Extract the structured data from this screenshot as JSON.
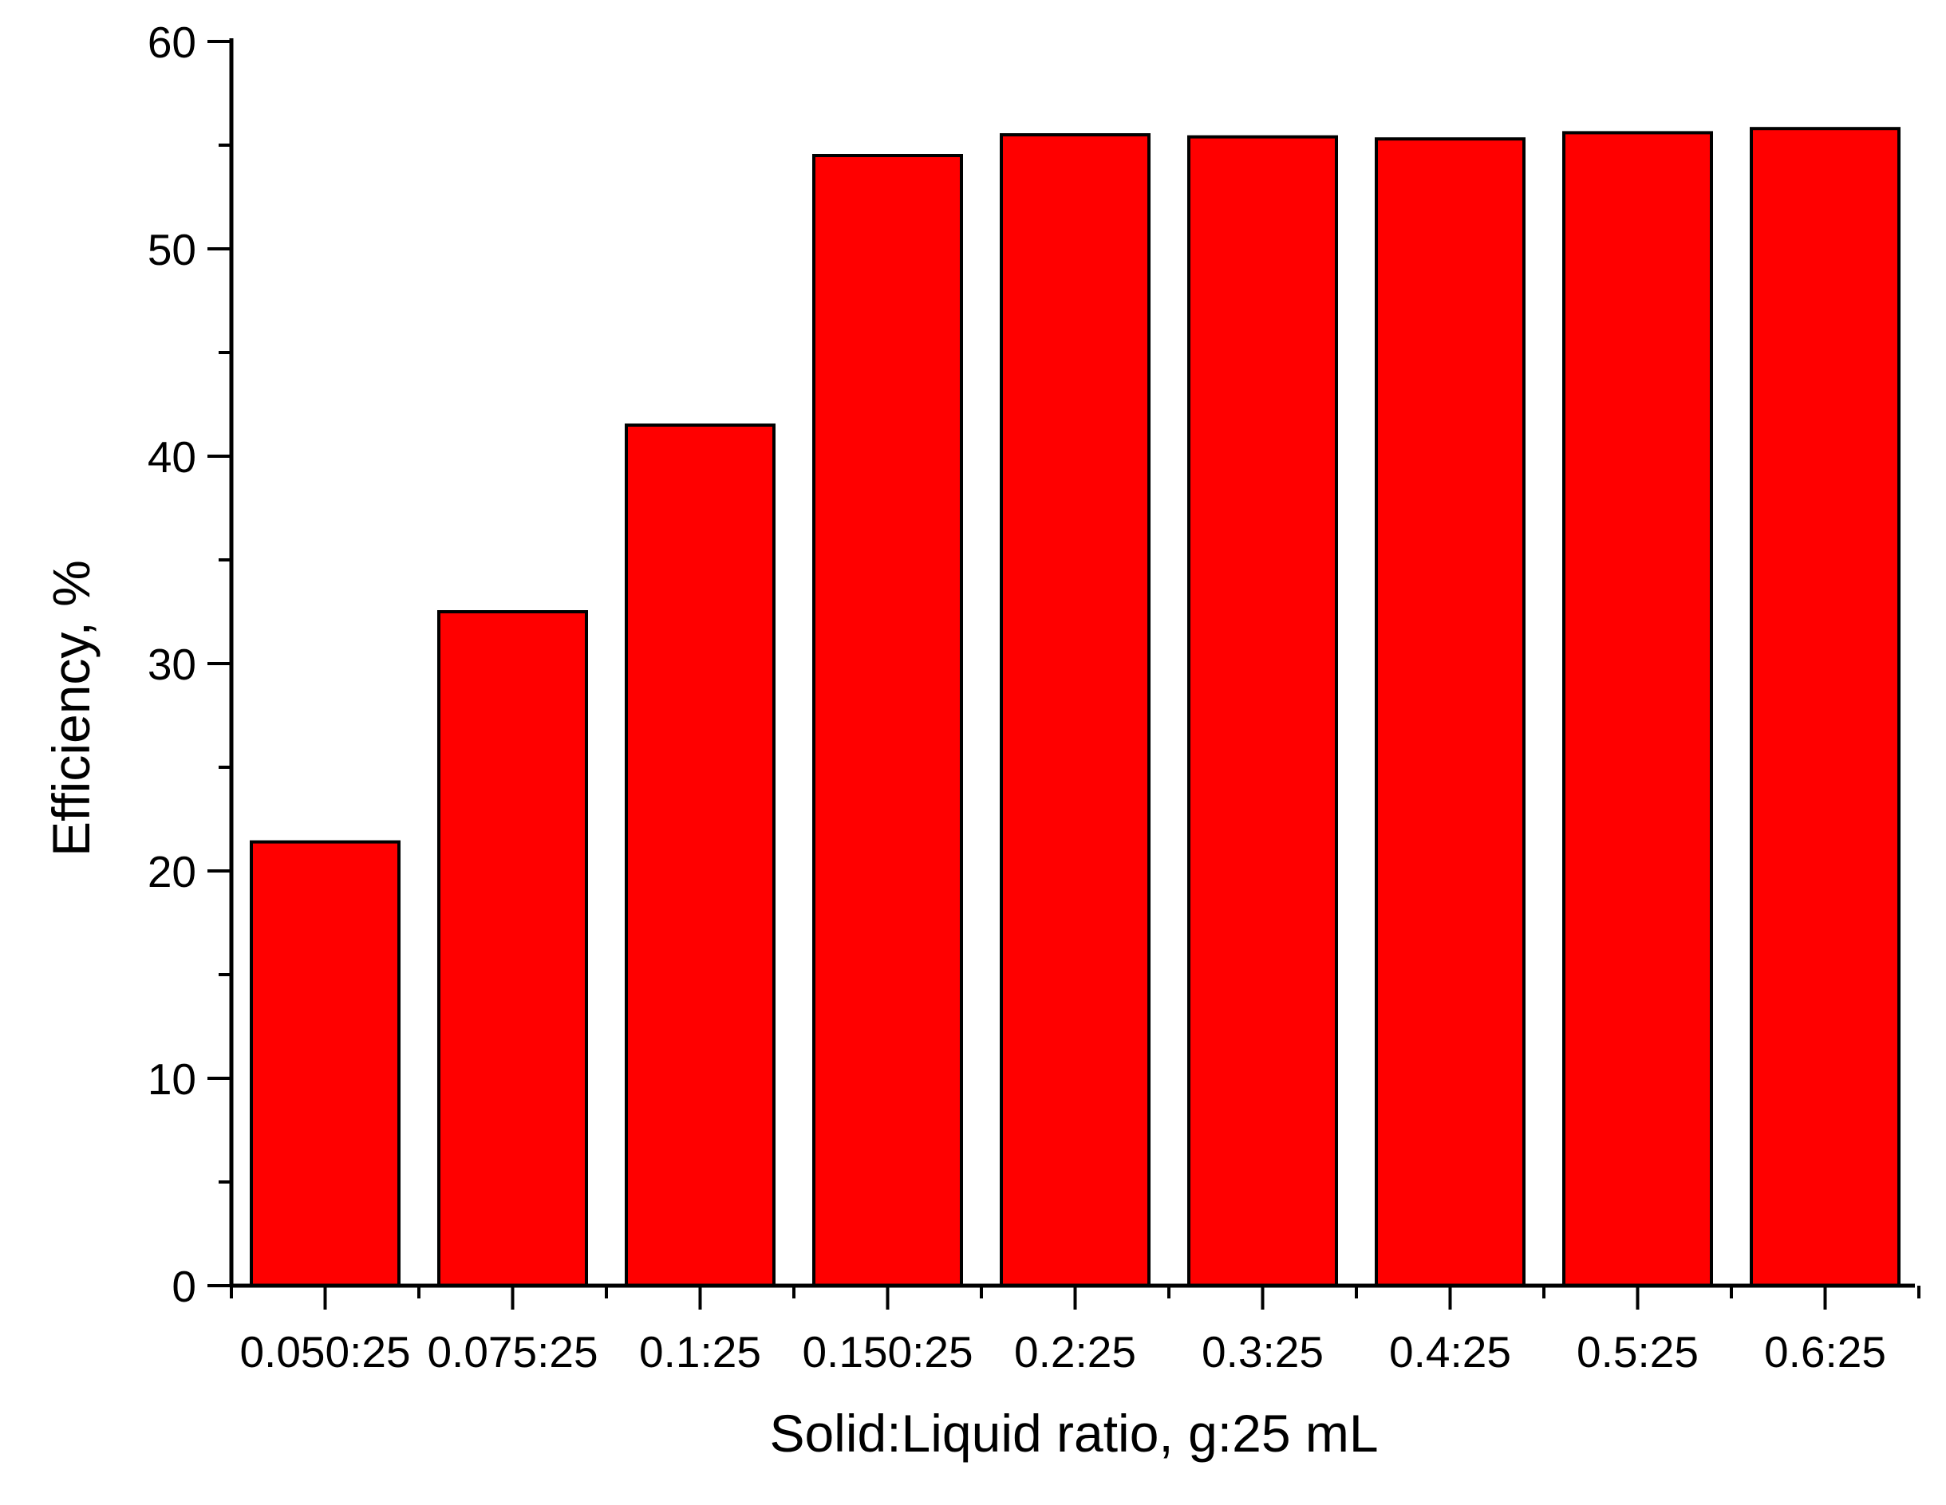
{
  "chart_data": {
    "type": "bar",
    "title": "",
    "xlabel": "Solid:Liquid ratio, g:25 mL",
    "ylabel": "Efficiency, %",
    "categories": [
      "0.050:25",
      "0.075:25",
      "0.1:25",
      "0.150:25",
      "0.2:25",
      "0.3:25",
      "0.4:25",
      "0.5:25",
      "0.6:25"
    ],
    "values": [
      21.4,
      32.5,
      41.5,
      54.5,
      55.5,
      55.4,
      55.3,
      55.6,
      55.8
    ],
    "ylim": [
      0,
      60
    ],
    "yticks": [
      0,
      10,
      20,
      30,
      40,
      50,
      60
    ],
    "y_minor_step": 5,
    "bar_color": "#ff0000",
    "edge_color": "#000000",
    "grid": false,
    "legend": "none"
  }
}
